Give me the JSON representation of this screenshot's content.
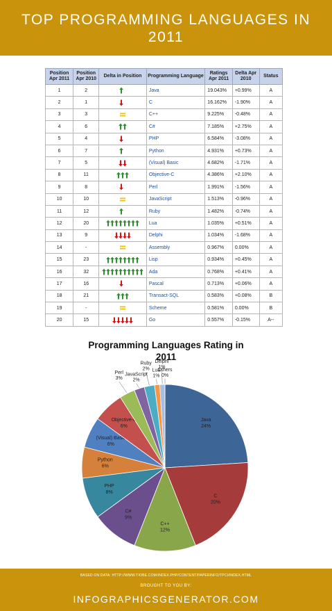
{
  "header": {
    "title": "TOP PROGRAMMING LANGUAGES IN 2011"
  },
  "table": {
    "columns": [
      "Position Apr 2011",
      "Position Apr 2010",
      "Delta in Position",
      "Programming Language",
      "Ratings Apr 2011",
      "Delta Apr 2010",
      "Status"
    ],
    "rows": [
      [
        "1",
        "2",
        "Java",
        "19.043%",
        "+0.99%",
        "A"
      ],
      [
        "2",
        "1",
        "C",
        "16.162%",
        "-1.90%",
        "A"
      ],
      [
        "3",
        "3",
        "C++",
        "9.225%",
        "-0.48%",
        "A"
      ],
      [
        "4",
        "6",
        "C#",
        "7.185%",
        "+2.75%",
        "A"
      ],
      [
        "5",
        "4",
        "PHP",
        "6.584%",
        "-3.08%",
        "A"
      ],
      [
        "6",
        "7",
        "Python",
        "4.931%",
        "+0.73%",
        "A"
      ],
      [
        "7",
        "5",
        "(Visual) Basic",
        "4.682%",
        "-1.71%",
        "A"
      ],
      [
        "8",
        "11",
        "Objective-C",
        "4.386%",
        "+2.10%",
        "A"
      ],
      [
        "9",
        "8",
        "Perl",
        "1.991%",
        "-1.56%",
        "A"
      ],
      [
        "10",
        "10",
        "JavaScript",
        "1.513%",
        "-0.96%",
        "A"
      ],
      [
        "11",
        "12",
        "Ruby",
        "1.482%",
        "-0.74%",
        "A"
      ],
      [
        "12",
        "20",
        "Lua",
        "1.035%",
        "+0.51%",
        "A"
      ],
      [
        "13",
        "9",
        "Delphi",
        "1.034%",
        "-1.68%",
        "A"
      ],
      [
        "14",
        "-",
        "Assembly",
        "0.967%",
        "0.00%",
        "A"
      ],
      [
        "15",
        "23",
        "Lisp",
        "0.934%",
        "+0.45%",
        "A"
      ],
      [
        "16",
        "32",
        "Ada",
        "0.768%",
        "+0.41%",
        "A"
      ],
      [
        "17",
        "16",
        "Pascal",
        "0.713%",
        "+0.06%",
        "A"
      ],
      [
        "18",
        "21",
        "Transact-SQL",
        "0.583%",
        "+0.08%",
        "B"
      ],
      [
        "19",
        "-",
        "Scheme",
        "0.581%",
        "0.00%",
        "B"
      ],
      [
        "20",
        "15",
        "Go",
        "0.557%",
        "-0.15%",
        "A--"
      ]
    ],
    "delta_arrows": [
      1,
      -1,
      0,
      2,
      -1,
      1,
      -2,
      3,
      -1,
      0,
      1,
      8,
      -4,
      0,
      8,
      10,
      -1,
      3,
      0,
      -5
    ]
  },
  "chart_data": {
    "type": "pie",
    "title": "Programming Languages Rating in 2011",
    "categories": [
      "Java",
      "C",
      "C++",
      "C#",
      "PHP",
      "Python",
      "(Visual) Basic",
      "Objective-C",
      "Perl",
      "JavaScript",
      "Ruby",
      "Lua",
      "Delphi",
      "Others"
    ],
    "values": [
      24,
      20,
      12,
      9,
      8,
      6,
      6,
      6,
      3,
      2,
      2,
      1,
      1,
      0
    ],
    "value_labels": [
      "24%",
      "20%",
      "12%",
      "9%",
      "8%",
      "6%",
      "6%",
      "6%",
      "3%",
      "2%",
      "2%",
      "1%",
      "1%",
      "0%"
    ],
    "colors": [
      "#3d6596",
      "#a53b3a",
      "#8aa64a",
      "#6a4f8c",
      "#37879e",
      "#d6813b",
      "#5180c0",
      "#c4504d",
      "#9bbb59",
      "#8064a2",
      "#4bacc6",
      "#f79646",
      "#a9bde0",
      "#dcdcdc"
    ]
  },
  "footer": {
    "source": "BASED ON DATA: HTTP://WWW.TIOBE.COM/INDEX.PHP/CONTENT/PAPERINFO/TPCI/INDEX.HTML",
    "credit": "BROUGHT TO YOU BY:",
    "site": "INFOGRAPHICSGENERATOR.COM"
  }
}
